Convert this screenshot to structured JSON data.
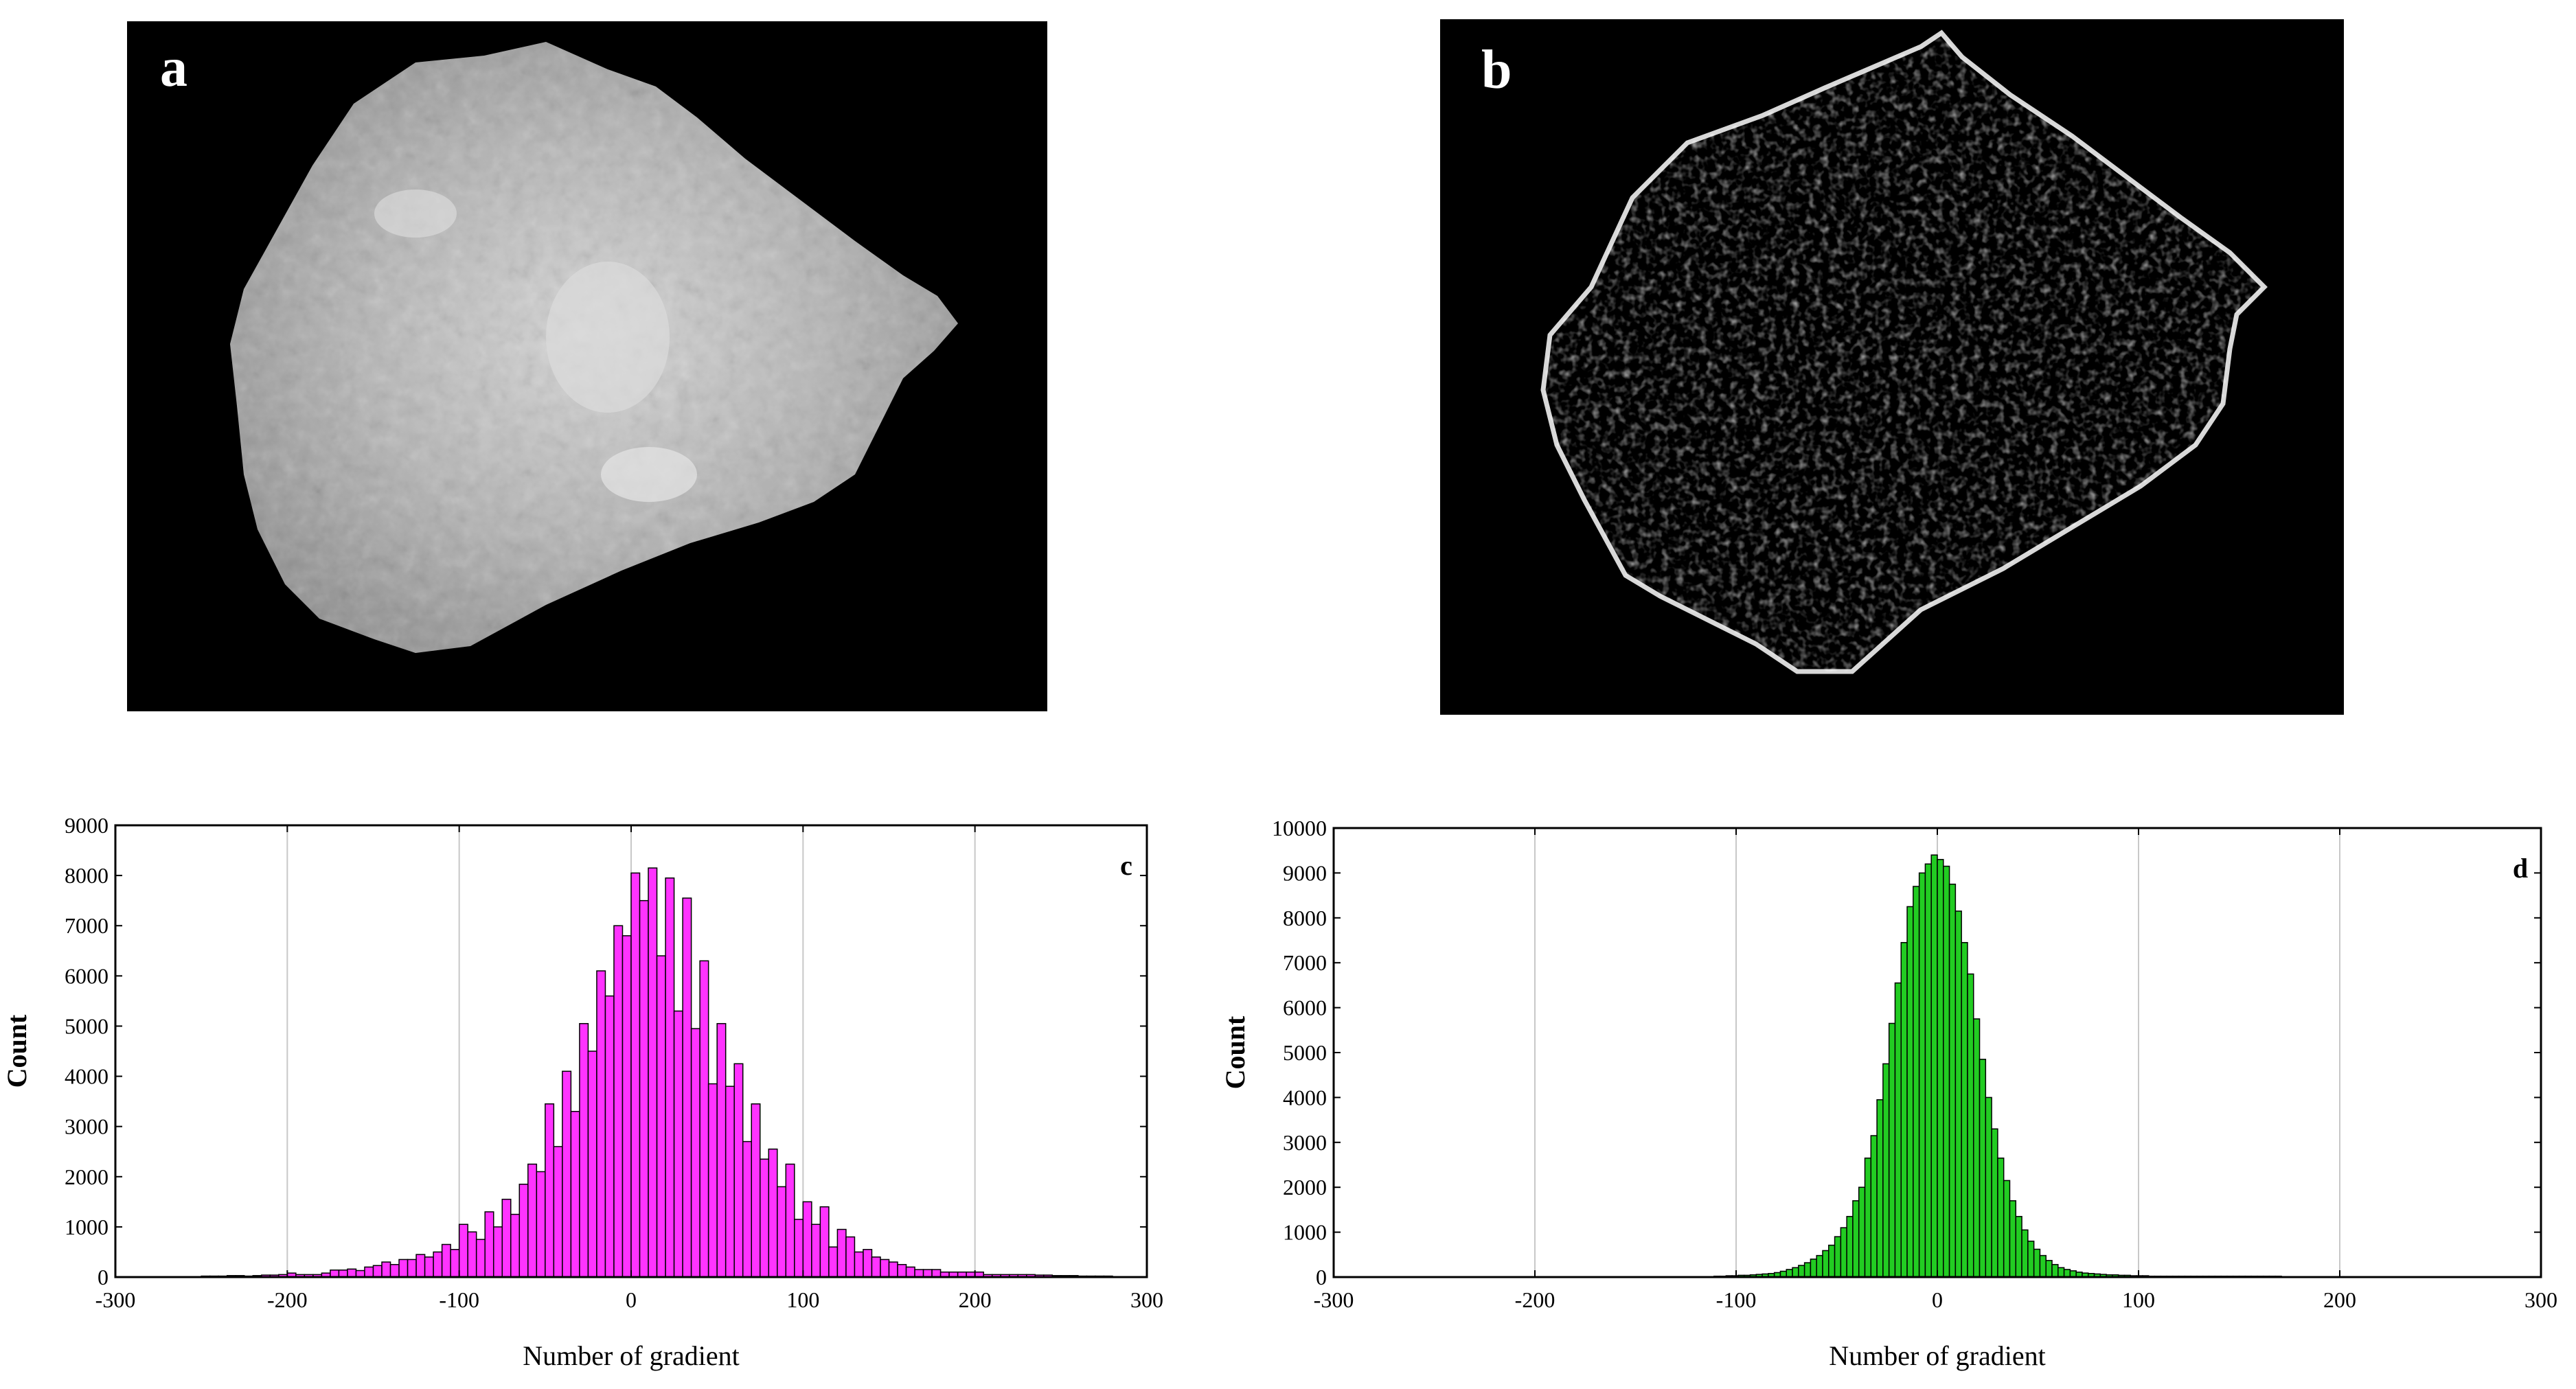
{
  "panels": {
    "a": {
      "label": "a"
    },
    "b": {
      "label": "b"
    }
  },
  "chart_data": [
    {
      "type": "bar",
      "panel_label": "c",
      "xlabel": "Number of gradient",
      "ylabel": "Count",
      "xlim": [
        -300,
        300
      ],
      "ylim": [
        0,
        9000
      ],
      "xticks": [
        -300,
        -200,
        -100,
        0,
        100,
        200,
        300
      ],
      "yticks": [
        0,
        1000,
        2000,
        3000,
        4000,
        5000,
        6000,
        7000,
        8000,
        9000
      ],
      "grid": "vertical",
      "bar_color": "#ff33ff",
      "bin_width": 5,
      "bins": [
        -250,
        -245,
        -240,
        -235,
        -230,
        -225,
        -220,
        -215,
        -210,
        -205,
        -200,
        -195,
        -190,
        -185,
        -180,
        -175,
        -170,
        -165,
        -160,
        -155,
        -150,
        -145,
        -140,
        -135,
        -130,
        -125,
        -120,
        -115,
        -110,
        -105,
        -100,
        -95,
        -90,
        -85,
        -80,
        -75,
        -70,
        -65,
        -60,
        -55,
        -50,
        -45,
        -40,
        -35,
        -30,
        -25,
        -20,
        -15,
        -10,
        -5,
        0,
        5,
        10,
        15,
        20,
        25,
        30,
        35,
        40,
        45,
        50,
        55,
        60,
        65,
        70,
        75,
        80,
        85,
        90,
        95,
        100,
        105,
        110,
        115,
        120,
        125,
        130,
        135,
        140,
        145,
        150,
        155,
        160,
        165,
        170,
        175,
        180,
        185,
        190,
        195,
        200,
        205,
        210,
        215,
        220,
        225,
        230,
        235,
        240,
        245,
        250,
        255,
        260,
        265,
        270,
        275
      ],
      "values": [
        20,
        20,
        20,
        30,
        30,
        20,
        30,
        40,
        40,
        50,
        80,
        50,
        50,
        50,
        80,
        140,
        140,
        160,
        130,
        200,
        230,
        300,
        250,
        350,
        350,
        450,
        400,
        500,
        650,
        550,
        1050,
        900,
        750,
        1300,
        1000,
        1550,
        1250,
        1850,
        2250,
        2100,
        3450,
        2600,
        4100,
        3300,
        5050,
        4500,
        6100,
        5600,
        7000,
        6800,
        8050,
        7500,
        8150,
        6400,
        7950,
        5300,
        7550,
        4950,
        6300,
        3850,
        5050,
        3800,
        4250,
        2700,
        3450,
        2350,
        2550,
        1800,
        2250,
        1150,
        1500,
        1050,
        1400,
        600,
        950,
        800,
        500,
        550,
        400,
        350,
        300,
        250,
        200,
        150,
        150,
        150,
        100,
        100,
        100,
        100,
        100,
        50,
        50,
        50,
        50,
        50,
        50,
        40,
        40,
        30,
        30,
        30,
        20,
        20,
        20,
        20
      ]
    },
    {
      "type": "bar",
      "panel_label": "d",
      "xlabel": "Number of gradient",
      "ylabel": "Count",
      "xlim": [
        -300,
        300
      ],
      "ylim": [
        0,
        10000
      ],
      "xticks": [
        -300,
        -200,
        -100,
        0,
        100,
        200,
        300
      ],
      "yticks": [
        0,
        1000,
        2000,
        3000,
        4000,
        5000,
        6000,
        7000,
        8000,
        9000,
        10000
      ],
      "grid": "vertical",
      "bar_color": "#22cc22",
      "bin_width": 3,
      "bins": [
        -111,
        -108,
        -105,
        -102,
        -99,
        -96,
        -93,
        -90,
        -87,
        -84,
        -81,
        -78,
        -75,
        -72,
        -69,
        -66,
        -63,
        -60,
        -57,
        -54,
        -51,
        -48,
        -45,
        -42,
        -39,
        -36,
        -33,
        -30,
        -27,
        -24,
        -21,
        -18,
        -15,
        -12,
        -9,
        -6,
        -3,
        0,
        3,
        6,
        9,
        12,
        15,
        18,
        21,
        24,
        27,
        30,
        33,
        36,
        39,
        42,
        45,
        48,
        51,
        54,
        57,
        60,
        63,
        66,
        69,
        72,
        75,
        78,
        81,
        84,
        87,
        90,
        93,
        96,
        99,
        102,
        105,
        108,
        111,
        114,
        117,
        120,
        123,
        126,
        129,
        132,
        135,
        138,
        141,
        144,
        147,
        150,
        153,
        156,
        159,
        162,
        165,
        168
      ],
      "values": [
        20,
        20,
        30,
        30,
        40,
        40,
        50,
        60,
        70,
        80,
        100,
        130,
        170,
        210,
        260,
        320,
        400,
        480,
        590,
        710,
        900,
        1100,
        1350,
        1700,
        2000,
        2650,
        3150,
        3950,
        4750,
        5650,
        6550,
        7450,
        8250,
        8700,
        9000,
        9200,
        9400,
        9300,
        9150,
        8750,
        8150,
        7450,
        6750,
        5750,
        4850,
        4000,
        3300,
        2650,
        2150,
        1700,
        1350,
        1050,
        800,
        620,
        480,
        370,
        280,
        210,
        170,
        140,
        110,
        90,
        80,
        70,
        60,
        50,
        50,
        40,
        40,
        30,
        30,
        30,
        20,
        20,
        20,
        20,
        20,
        20,
        20,
        20,
        20,
        20,
        20,
        20,
        20,
        20,
        20,
        20,
        20,
        20,
        20,
        20,
        20,
        20
      ]
    }
  ]
}
